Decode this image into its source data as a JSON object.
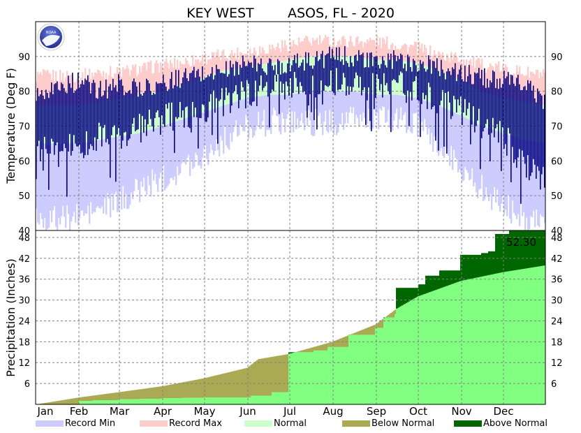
{
  "chart_data": {
    "type": "area",
    "title": "KEY WEST        ASOS, FL - 2020",
    "months": [
      "Jan",
      "Feb",
      "Mar",
      "Apr",
      "May",
      "Jun",
      "Jul",
      "Aug",
      "Sep",
      "Oct",
      "Nov",
      "Dec"
    ],
    "temperature": {
      "ylabel": "Temperature (Deg F)",
      "ylim": [
        40,
        100
      ],
      "ticks": [
        40,
        50,
        60,
        70,
        80,
        90
      ],
      "grid": true,
      "keys": [
        1,
        15,
        32,
        46,
        60,
        75,
        91,
        106,
        121,
        136,
        152,
        167,
        182,
        197,
        213,
        228,
        244,
        259,
        274,
        289,
        305,
        320,
        335,
        350,
        366
      ],
      "record_max": [
        84,
        84,
        84,
        85,
        85,
        86,
        87,
        88,
        89,
        90,
        91,
        92,
        93,
        94,
        94,
        94,
        94,
        93,
        92,
        90,
        89,
        87,
        86,
        85,
        84
      ],
      "normal_high": [
        76,
        76,
        76,
        77,
        78,
        79,
        80,
        82,
        84,
        86,
        87,
        88,
        89,
        90,
        90,
        90,
        89,
        89,
        88,
        86,
        83,
        80,
        78,
        77,
        76
      ],
      "normal_low": [
        65,
        65,
        65,
        66,
        67,
        68,
        70,
        72,
        74,
        76,
        78,
        79,
        79,
        80,
        80,
        80,
        79,
        79,
        78,
        76,
        73,
        70,
        68,
        66,
        65
      ],
      "record_min": [
        44,
        43,
        44,
        46,
        48,
        52,
        55,
        58,
        62,
        66,
        70,
        71,
        72,
        71,
        71,
        72,
        72,
        72,
        70,
        64,
        58,
        52,
        47,
        44,
        44
      ],
      "observed_high": [
        80,
        81,
        83,
        80,
        82,
        81,
        82,
        84,
        85,
        86,
        88,
        87,
        88,
        89,
        90,
        90,
        88,
        89,
        88,
        87,
        85,
        84,
        83,
        82,
        77
      ],
      "observed_low": [
        66,
        65,
        63,
        68,
        66,
        69,
        72,
        73,
        75,
        77,
        79,
        81,
        82,
        82,
        83,
        83,
        81,
        82,
        80,
        77,
        74,
        71,
        67,
        60,
        55
      ]
    },
    "precipitation": {
      "ylabel": "Precipitation (Inches)",
      "ylim": [
        0,
        50
      ],
      "ticks": [
        6,
        12,
        18,
        24,
        30,
        36,
        42,
        48
      ],
      "grid": true,
      "total_label": "52.30",
      "normal_cumulative": {
        "x": [
          1,
          32,
          60,
          91,
          121,
          152,
          160,
          182,
          213,
          244,
          259,
          274,
          305,
          335,
          366
        ],
        "y": [
          0,
          2.0,
          3.5,
          5.2,
          7.5,
          10.5,
          13.0,
          14.5,
          18.0,
          23.0,
          27.5,
          31.0,
          35.5,
          38.0,
          40.0
        ]
      },
      "observed_cumulative": {
        "x": [
          1,
          32,
          42,
          60,
          75,
          91,
          106,
          121,
          140,
          155,
          170,
          182,
          200,
          210,
          225,
          244,
          250,
          258,
          259,
          275,
          280,
          290,
          305,
          310,
          320,
          325,
          330,
          340,
          350,
          366
        ],
        "y": [
          0,
          1.0,
          1.2,
          1.5,
          1.6,
          1.8,
          1.9,
          2.0,
          2.0,
          2.5,
          3.5,
          15.0,
          15.5,
          16.5,
          20.0,
          22.0,
          25.0,
          26.0,
          33.5,
          34.5,
          37.0,
          38.5,
          43.0,
          43.0,
          43.5,
          44.0,
          49.0,
          50.3,
          51.5,
          52.3
        ]
      }
    },
    "legend": {
      "placement": "bottom",
      "items": [
        {
          "label": "Record Min",
          "color": "#ccccff"
        },
        {
          "label": "Record Max",
          "color": "#ffcccc"
        },
        {
          "label": "Normal",
          "color": "#ccffcc"
        },
        {
          "label": "Below Normal",
          "color": "#aaaa55"
        },
        {
          "label": "Above Normal",
          "color": "#006600"
        }
      ]
    },
    "colors": {
      "observed": "#000080",
      "normal_precip": "#80ff80",
      "below_normal": "#aaaa55",
      "above_normal": "#006600"
    },
    "logo": "NOAA"
  }
}
